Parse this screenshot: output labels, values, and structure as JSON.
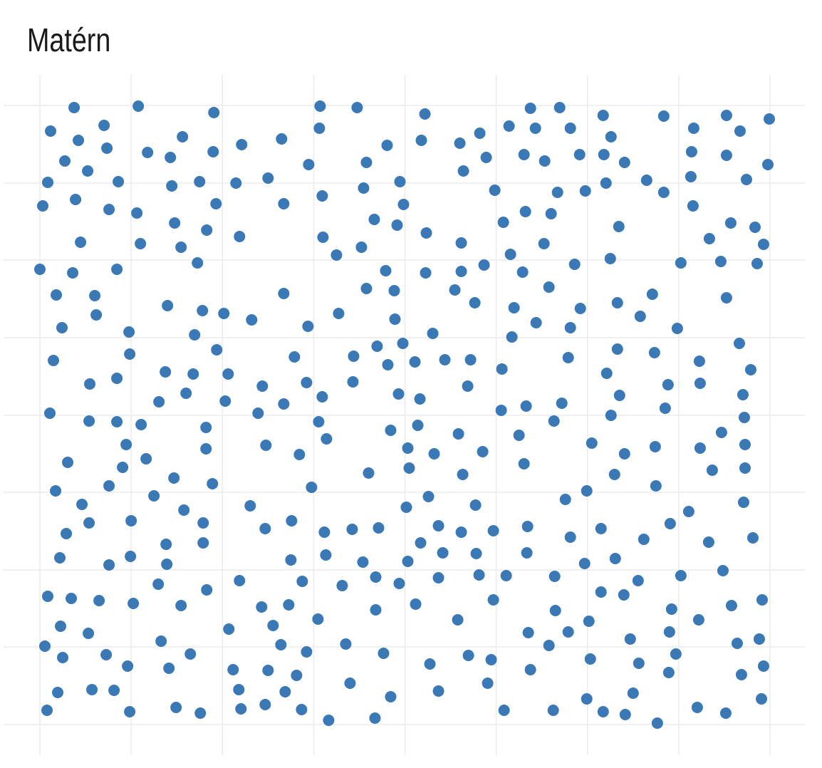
{
  "chart_data": {
    "type": "scatter",
    "title": "Matérn",
    "color": "#3a78b6",
    "grid": true,
    "xlim": [
      0,
      1024
    ],
    "ylim": [
      0,
      869
    ],
    "xticks": [
      0,
      128,
      256,
      384,
      512,
      640,
      768,
      896,
      1024
    ],
    "yticks": [
      0,
      109,
      217,
      326,
      434,
      543,
      652,
      760,
      869
    ],
    "x": [
      48,
      138,
      244,
      393,
      445,
      540,
      688,
      729,
      790,
      875,
      963,
      1023,
      15,
      54,
      90,
      200,
      283,
      339,
      392,
      487,
      535,
      589,
      617,
      658,
      695,
      744,
      801,
      917,
      982,
      94,
      151,
      183,
      243,
      35,
      67,
      377,
      458,
      594,
      626,
      679,
      708,
      757,
      791,
      820,
      914,
      963,
      1021,
      11,
      110,
      185,
      224,
      275,
      320,
      454,
      505,
      638,
      726,
      765,
      794,
      851,
      875,
      913,
      991,
      4,
      50,
      97,
      136,
      247,
      342,
      396,
      469,
      510,
      501,
      542,
      591,
      650,
      681,
      717,
      812,
      916,
      969,
      1003,
      57,
      141,
      189,
      198,
      234,
      280,
      397,
      416,
      451,
      707,
      939,
      1015,
      0,
      46,
      108,
      221,
      485,
      541,
      591,
      623,
      660,
      677,
      750,
      800,
      899,
      955,
      1006,
      23,
      77,
      342,
      458,
      497,
      582,
      714,
      859,
      963,
      79,
      179,
      228,
      258,
      297,
      419,
      498,
      610,
      665,
      696,
      758,
      810,
      842,
      31,
      125,
      217,
      376,
      551,
      662,
      744,
      894,
      126,
      248,
      357,
      440,
      473,
      509,
      526,
      488,
      568,
      604,
      648,
      741,
      810,
      862,
      925,
      981,
      997,
      19,
      70,
      108,
      176,
      215,
      264,
      312,
      374,
      439,
      600,
      795,
      881,
      926,
      167,
      205,
      260,
      342,
      396,
      503,
      533,
      647,
      682,
      732,
      813,
      986,
      14,
      69,
      108,
      142,
      233,
      306,
      391,
      492,
      530,
      587,
      672,
      721,
      801,
      877,
      956,
      988,
      121,
      233,
      317,
      402,
      516,
      553,
      621,
      774,
      820,
      863,
      926,
      989,
      39,
      149,
      364,
      679,
      116,
      188,
      461,
      518,
      593,
      806,
      943,
      989,
      22,
      97,
      160,
      242,
      381,
      514,
      545,
      611,
      737,
      767,
      864,
      910,
      987,
      59,
      202,
      295,
      69,
      128,
      229,
      316,
      353,
      399,
      438,
      475,
      559,
      591,
      636,
      684,
      744,
      787,
      884,
      1000,
      37,
      177,
      229,
      534,
      565,
      612,
      683,
      807,
      847,
      938,
      28,
      97,
      127,
      178,
      352,
      401,
      453,
      516,
      471,
      559,
      616,
      654,
      722,
      764,
      899,
      958,
      280,
      368,
      424,
      504,
      166,
      234,
      839,
      11,
      44,
      83,
      131,
      198,
      311,
      349,
      471,
      527,
      636,
      723,
      787,
      819,
      886,
      970,
      1013,
      390,
      586,
      770,
      924,
      29,
      68,
      265,
      327,
      7,
      32,
      93,
      123,
      170,
      211,
      181,
      338,
      374,
      429,
      482,
      547,
      601,
      633,
      685,
      714,
      741,
      772,
      828,
      840,
      883,
      892,
      978,
      1009,
      271,
      320,
      360,
      688,
      882,
      984,
      1015,
      25,
      73,
      104,
      279,
      344,
      435,
      492,
      559,
      628,
      832,
      1012,
      10,
      126,
      191,
      225,
      282,
      316,
      367,
      405,
      470,
      651,
      720,
      767,
      790,
      821,
      866,
      922,
      962
    ],
    "values": [
      866,
      868,
      859,
      868,
      866,
      857,
      865,
      866,
      855,
      854,
      855,
      850,
      833,
      820,
      841,
      825,
      814,
      822,
      837,
      813,
      820,
      816,
      830,
      840,
      837,
      837,
      825,
      837,
      833,
      809,
      803,
      796,
      804,
      791,
      777,
      786,
      789,
      777,
      796,
      800,
      791,
      800,
      800,
      789,
      804,
      799,
      786,
      761,
      762,
      756,
      762,
      760,
      767,
      753,
      762,
      750,
      747,
      749,
      760,
      764,
      747,
      769,
      765,
      728,
      737,
      723,
      718,
      731,
      731,
      742,
      709,
      730,
      701,
      690,
      676,
      705,
      720,
      717,
      699,
      728,
      704,
      698,
      677,
      675,
      704,
      670,
      694,
      685,
      684,
      659,
      670,
      675,
      682,
      674,
      639,
      634,
      639,
      648,
      637,
      634,
      636,
      645,
      660,
      635,
      646,
      654,
      648,
      650,
      647,
      603,
      602,
      605,
      612,
      609,
      610,
      614,
      604,
      599,
      575,
      588,
      581,
      577,
      568,
      577,
      569,
      592,
      585,
      564,
      584,
      592,
      573,
      557,
      551,
      547,
      559,
      549,
      544,
      557,
      556,
      520,
      526,
      516,
      517,
      531,
      535,
      509,
      505,
      512,
      512,
      499,
      515,
      527,
      522,
      510,
      535,
      498,
      511,
      478,
      486,
      495,
      492,
      492,
      475,
      480,
      481,
      475,
      493,
      477,
      479,
      453,
      465,
      454,
      450,
      460,
      464,
      457,
      441,
      447,
      451,
      462,
      463,
      437,
      426,
      425,
      421,
      417,
      437,
      425,
      413,
      420,
      408,
      406,
      426,
      434,
      444,
      410,
      431,
      393,
      387,
      392,
      401,
      388,
      380,
      383,
      395,
      380,
      390,
      388,
      393,
      368,
      373,
      379,
      366,
      361,
      346,
      353,
      360,
      351,
      351,
      357,
      360,
      328,
      335,
      321,
      338,
      333,
      305,
      320,
      308,
      316,
      328,
      335,
      299,
      312,
      309,
      301,
      307,
      283,
      286,
      283,
      275,
      286,
      270,
      274,
      276,
      279,
      270,
      272,
      278,
      263,
      275,
      282,
      262,
      268,
      253,
      255,
      255,
      241,
      240,
      241,
      233,
      260,
      256,
      234,
      224,
      236,
      225,
      231,
      238,
      228,
      229,
      207,
      206,
      210,
      209,
      208,
      226,
      209,
      216,
      202,
      201,
      195,
      198,
      197,
      189,
      202,
      180,
      177,
      174,
      170,
      167,
      165,
      168,
      161,
      169,
      175,
      160,
      186,
      182,
      162,
      167,
      175,
      148,
      147,
      145,
      147,
      138,
      128,
      134,
      139,
      110,
      94,
      98,
      82,
      117,
      99,
      79,
      112,
      102,
      113,
      100,
      85,
      97,
      91,
      129,
      111,
      130,
      92,
      120,
      86,
      130,
      99,
      114,
      120,
      77,
      76,
      69,
      77,
      73,
      70,
      82,
      45,
      49,
      48,
      49,
      46,
      58,
      39,
      47,
      58,
      44,
      36,
      20,
      18,
      24,
      16,
      22,
      28,
      21,
      6,
      9,
      20,
      20,
      36,
      18,
      14,
      2,
      24,
      16
    ]
  }
}
